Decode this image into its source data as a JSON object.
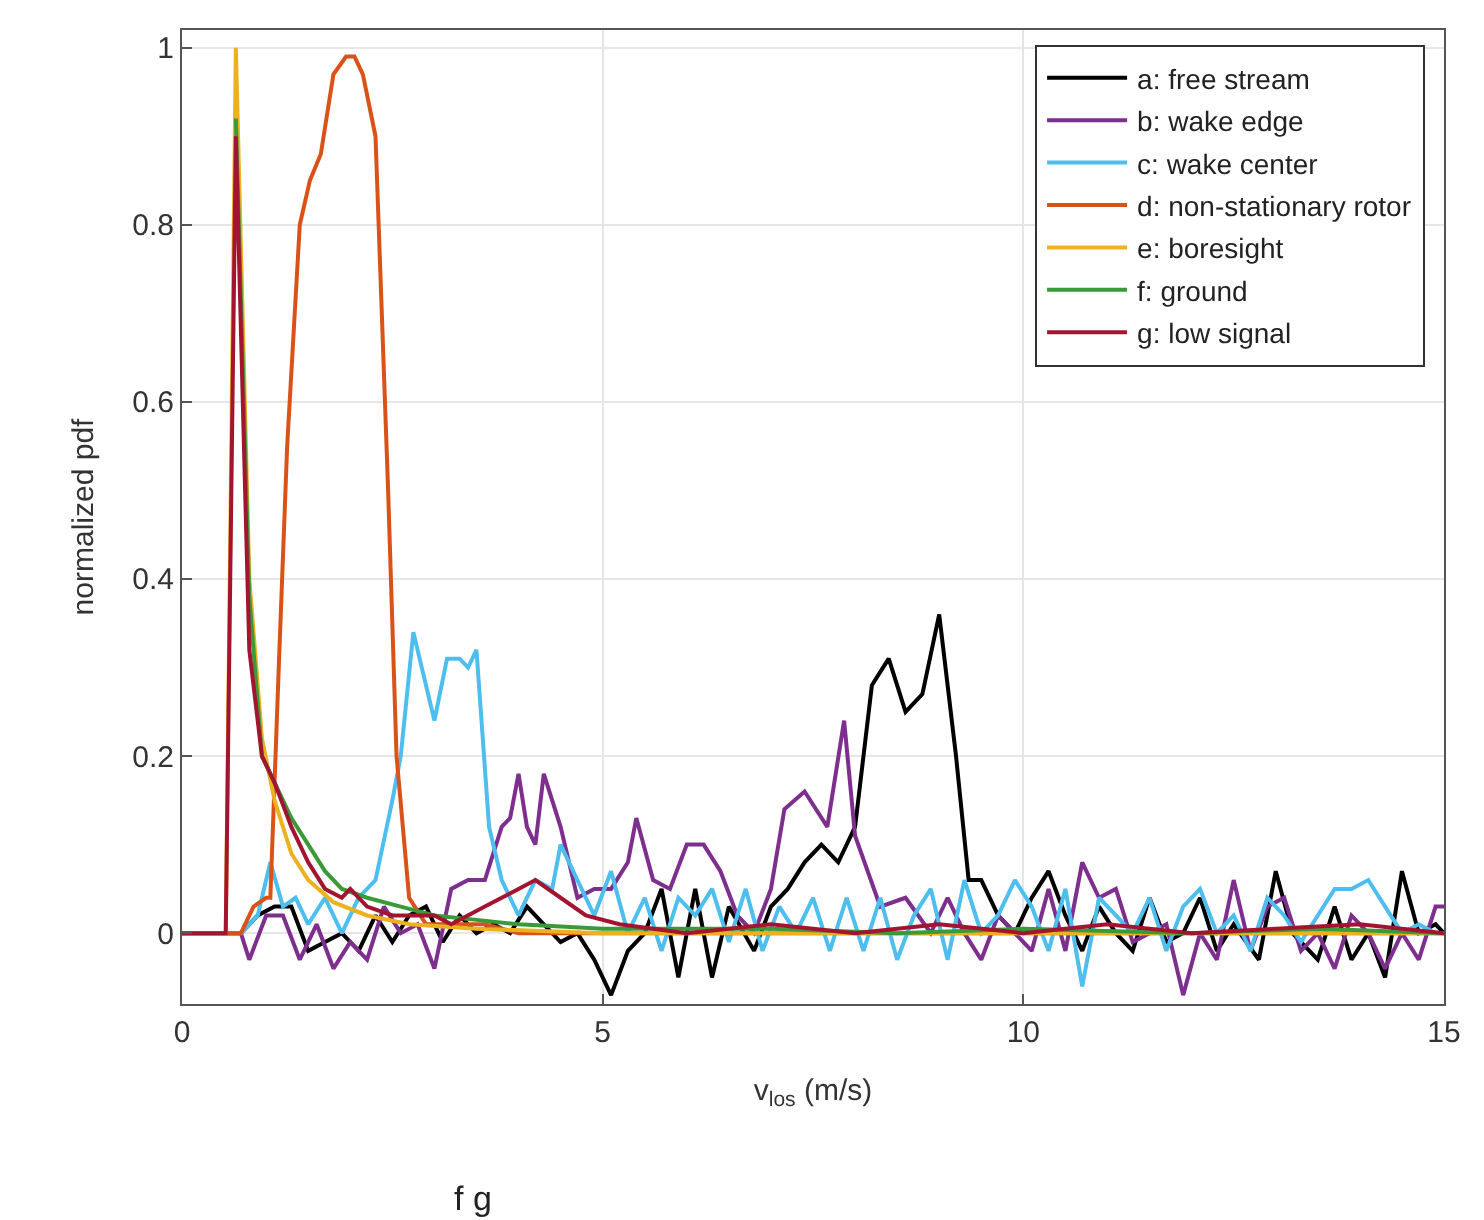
{
  "chart_data": {
    "type": "line",
    "xlabel": "v$_{los}$ (m/s)",
    "ylabel": "normalized pdf",
    "annotations": [
      "f g"
    ],
    "xlim": [
      0,
      15
    ],
    "ylim": [
      -0.08,
      1.02
    ],
    "xticks": [
      0,
      5,
      10,
      15
    ],
    "yticks": [
      0,
      0.2,
      0.4,
      0.6,
      0.8,
      1
    ],
    "grid": true,
    "legend": "top right",
    "series": [
      {
        "name": "a: free stream",
        "color": "#000000",
        "x": [
          0,
          0.7,
          0.9,
          1.1,
          1.3,
          1.5,
          1.7,
          1.9,
          2.1,
          2.3,
          2.5,
          2.7,
          2.9,
          3.1,
          3.3,
          3.5,
          3.7,
          3.9,
          4.1,
          4.3,
          4.5,
          4.7,
          4.9,
          5.1,
          5.3,
          5.5,
          5.7,
          5.9,
          6.1,
          6.3,
          6.5,
          6.8,
          7.0,
          7.2,
          7.4,
          7.6,
          7.8,
          8.0,
          8.2,
          8.4,
          8.6,
          8.8,
          9.0,
          9.2,
          9.35,
          9.5,
          9.7,
          9.9,
          10.1,
          10.3,
          10.5,
          10.7,
          10.9,
          11.1,
          11.3,
          11.5,
          11.7,
          11.9,
          12.1,
          12.3,
          12.5,
          12.8,
          13.0,
          13.2,
          13.5,
          13.7,
          13.9,
          14.1,
          14.3,
          14.5,
          14.7,
          14.9,
          15
        ],
        "values": [
          0,
          0,
          0.02,
          0.03,
          0.03,
          -0.02,
          -0.01,
          0.0,
          -0.02,
          0.02,
          -0.01,
          0.02,
          0.03,
          -0.01,
          0.02,
          0.0,
          0.01,
          0.0,
          0.03,
          0.01,
          -0.01,
          0.0,
          -0.03,
          -0.07,
          -0.02,
          0.0,
          0.05,
          -0.05,
          0.05,
          -0.05,
          0.03,
          -0.02,
          0.03,
          0.05,
          0.08,
          0.1,
          0.08,
          0.12,
          0.28,
          0.31,
          0.25,
          0.27,
          0.36,
          0.2,
          0.06,
          0.06,
          0.02,
          0.0,
          0.04,
          0.07,
          0.02,
          -0.02,
          0.03,
          0.0,
          -0.02,
          0.04,
          -0.01,
          0.0,
          0.04,
          -0.02,
          0.01,
          -0.03,
          0.07,
          0.0,
          -0.03,
          0.03,
          -0.03,
          0.0,
          -0.05,
          0.07,
          0.0,
          0.01,
          0.0
        ]
      },
      {
        "name": "b: wake edge",
        "color": "#7e2f8e",
        "x": [
          0,
          0.7,
          0.8,
          1.0,
          1.2,
          1.4,
          1.6,
          1.8,
          2.0,
          2.2,
          2.4,
          2.6,
          2.8,
          3.0,
          3.2,
          3.4,
          3.6,
          3.8,
          3.9,
          4.0,
          4.1,
          4.2,
          4.3,
          4.5,
          4.7,
          4.9,
          5.1,
          5.3,
          5.4,
          5.6,
          5.8,
          6.0,
          6.2,
          6.4,
          6.6,
          6.8,
          7.0,
          7.16,
          7.4,
          7.67,
          7.87,
          8.0,
          8.3,
          8.6,
          8.9,
          9.1,
          9.3,
          9.5,
          9.7,
          9.9,
          10.1,
          10.3,
          10.5,
          10.7,
          10.9,
          11.1,
          11.3,
          11.5,
          11.7,
          11.9,
          12.1,
          12.3,
          12.5,
          12.7,
          12.9,
          13.1,
          13.3,
          13.5,
          13.7,
          13.9,
          14.1,
          14.3,
          14.5,
          14.7,
          14.9,
          15
        ],
        "values": [
          0,
          0,
          -0.03,
          0.02,
          0.02,
          -0.03,
          0.01,
          -0.04,
          -0.01,
          -0.03,
          0.03,
          0.0,
          0.01,
          -0.04,
          0.05,
          0.06,
          0.06,
          0.12,
          0.13,
          0.18,
          0.12,
          0.1,
          0.18,
          0.12,
          0.04,
          0.05,
          0.05,
          0.08,
          0.13,
          0.06,
          0.05,
          0.1,
          0.1,
          0.07,
          0.02,
          0.0,
          0.05,
          0.14,
          0.16,
          0.12,
          0.24,
          0.11,
          0.03,
          0.04,
          0.0,
          0.04,
          0.0,
          -0.03,
          0.02,
          0.0,
          -0.02,
          0.05,
          -0.02,
          0.08,
          0.04,
          0.05,
          -0.01,
          0.0,
          0.01,
          -0.07,
          0.0,
          -0.03,
          0.06,
          -0.02,
          0.03,
          0.04,
          -0.02,
          0.0,
          -0.04,
          0.02,
          0.0,
          -0.04,
          0.0,
          -0.03,
          0.03,
          0.03
        ]
      },
      {
        "name": "c: wake center",
        "color": "#4dbeee",
        "x": [
          0,
          0.7,
          0.9,
          1.05,
          1.2,
          1.35,
          1.5,
          1.7,
          1.9,
          2.1,
          2.3,
          2.5,
          2.6,
          2.75,
          2.9,
          3.0,
          3.15,
          3.3,
          3.4,
          3.5,
          3.65,
          3.8,
          4.0,
          4.2,
          4.4,
          4.5,
          4.7,
          4.9,
          5.1,
          5.3,
          5.5,
          5.7,
          5.9,
          6.1,
          6.3,
          6.5,
          6.7,
          6.9,
          7.1,
          7.3,
          7.5,
          7.7,
          7.9,
          8.1,
          8.3,
          8.5,
          8.7,
          8.9,
          9.1,
          9.3,
          9.5,
          9.7,
          9.9,
          10.1,
          10.3,
          10.5,
          10.7,
          10.9,
          11.1,
          11.3,
          11.5,
          11.7,
          11.9,
          12.1,
          12.3,
          12.5,
          12.7,
          12.9,
          13.1,
          13.3,
          13.5,
          13.7,
          13.9,
          14.1,
          14.3,
          14.5,
          14.7,
          14.9,
          15
        ],
        "values": [
          0,
          0,
          0.02,
          0.08,
          0.03,
          0.04,
          0.01,
          0.04,
          0.0,
          0.04,
          0.06,
          0.15,
          0.2,
          0.34,
          0.28,
          0.24,
          0.31,
          0.31,
          0.3,
          0.32,
          0.12,
          0.06,
          0.02,
          0.06,
          0.05,
          0.1,
          0.06,
          0.02,
          0.07,
          0.0,
          0.04,
          -0.02,
          0.04,
          0.02,
          0.05,
          -0.01,
          0.05,
          -0.02,
          0.03,
          0.0,
          0.04,
          -0.02,
          0.04,
          -0.02,
          0.04,
          -0.03,
          0.02,
          0.05,
          -0.03,
          0.06,
          0.0,
          0.02,
          0.06,
          0.03,
          -0.02,
          0.05,
          -0.06,
          0.04,
          0.02,
          0.0,
          0.04,
          -0.02,
          0.03,
          0.05,
          0.0,
          0.02,
          -0.02,
          0.04,
          0.02,
          -0.01,
          0.02,
          0.05,
          0.05,
          0.06,
          0.03,
          0.0,
          0.01,
          0.0,
          0.0
        ]
      },
      {
        "name": "d: non-stationary rotor",
        "color": "#d95319",
        "x": [
          0,
          0.7,
          0.85,
          1.0,
          1.05,
          1.15,
          1.25,
          1.4,
          1.52,
          1.65,
          1.8,
          1.95,
          2.05,
          2.15,
          2.3,
          2.45,
          2.55,
          2.7,
          2.9,
          3.2,
          3.6,
          4.0,
          5,
          6,
          8,
          10,
          12,
          15
        ],
        "values": [
          0,
          0,
          0.03,
          0.04,
          0.04,
          0.3,
          0.55,
          0.8,
          0.85,
          0.88,
          0.97,
          0.99,
          0.99,
          0.97,
          0.9,
          0.5,
          0.2,
          0.04,
          0.01,
          0.01,
          0.01,
          0.0,
          0.0,
          0.0,
          0.0,
          0.0,
          0.0,
          0.0
        ]
      },
      {
        "name": "e: boresight",
        "color": "#edb120",
        "x": [
          0,
          0.52,
          0.64,
          0.8,
          0.95,
          1.1,
          1.3,
          1.5,
          1.8,
          2.2,
          2.7,
          3.5,
          5,
          8,
          11,
          15
        ],
        "values": [
          0,
          0,
          1.0,
          0.4,
          0.22,
          0.15,
          0.09,
          0.06,
          0.035,
          0.02,
          0.01,
          0.005,
          0.0,
          0.0,
          0.0,
          0.0
        ]
      },
      {
        "name": "f: ground",
        "color": "#3a9a3a",
        "x": [
          0.64,
          0.8,
          0.95,
          1.1,
          1.3,
          1.5,
          1.7,
          1.9,
          2.2,
          2.6,
          3.0,
          3.5,
          4.0,
          5,
          7,
          8.5,
          10,
          12,
          13.5,
          15
        ],
        "values": [
          0.92,
          0.38,
          0.2,
          0.17,
          0.13,
          0.1,
          0.07,
          0.05,
          0.04,
          0.03,
          0.02,
          0.015,
          0.01,
          0.005,
          0.005,
          0.0,
          0.005,
          0.0,
          0.005,
          0.0
        ]
      },
      {
        "name": "g: low signal",
        "color": "#a2142f",
        "x": [
          0,
          0.52,
          0.64,
          0.8,
          0.95,
          1.1,
          1.3,
          1.5,
          1.7,
          1.9,
          2.0,
          2.2,
          2.5,
          3.0,
          3.2,
          3.6,
          4.0,
          4.2,
          4.5,
          4.8,
          5.2,
          6,
          7,
          8,
          9,
          10,
          11,
          12,
          13,
          14,
          15
        ],
        "values": [
          0,
          0,
          0.9,
          0.32,
          0.2,
          0.17,
          0.12,
          0.08,
          0.05,
          0.04,
          0.05,
          0.03,
          0.02,
          0.02,
          0.01,
          0.03,
          0.05,
          0.06,
          0.04,
          0.02,
          0.01,
          0.0,
          0.01,
          0.0,
          0.01,
          0.0,
          0.01,
          0.0,
          0.005,
          0.01,
          0.0
        ]
      }
    ]
  }
}
